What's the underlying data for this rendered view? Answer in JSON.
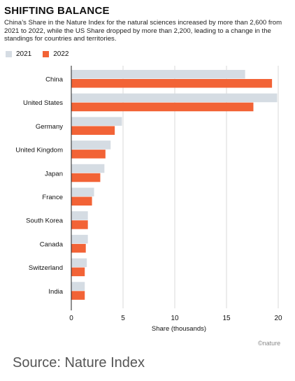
{
  "chart_data": {
    "type": "bar",
    "orientation": "horizontal",
    "title": "SHIFTING BALANCE",
    "subtitle": "China’s Share in the Nature Index for the natural sciences increased by more than 2,600 from 2021 to 2022, while the US Share dropped by more than 2,200, leading to a change in the standings for countries and territories.",
    "categories": [
      "China",
      "United States",
      "Germany",
      "United Kingdom",
      "Japan",
      "France",
      "South Korea",
      "Canada",
      "Switzerland",
      "India"
    ],
    "series": [
      {
        "name": "2021",
        "color": "#d5dce3",
        "values": [
          16.8,
          19.9,
          4.9,
          3.8,
          3.2,
          2.2,
          1.6,
          1.6,
          1.5,
          1.3
        ]
      },
      {
        "name": "2022",
        "color": "#f26336",
        "values": [
          19.4,
          17.6,
          4.2,
          3.3,
          2.8,
          2.0,
          1.6,
          1.4,
          1.3,
          1.3
        ]
      }
    ],
    "xlabel": "Share (thousands)",
    "xlim": [
      0,
      20
    ],
    "xticks": [
      0,
      5,
      10,
      15,
      20
    ],
    "grid": true,
    "legend": "top-left"
  },
  "credit": "©nature",
  "source": "Source: Nature Index"
}
